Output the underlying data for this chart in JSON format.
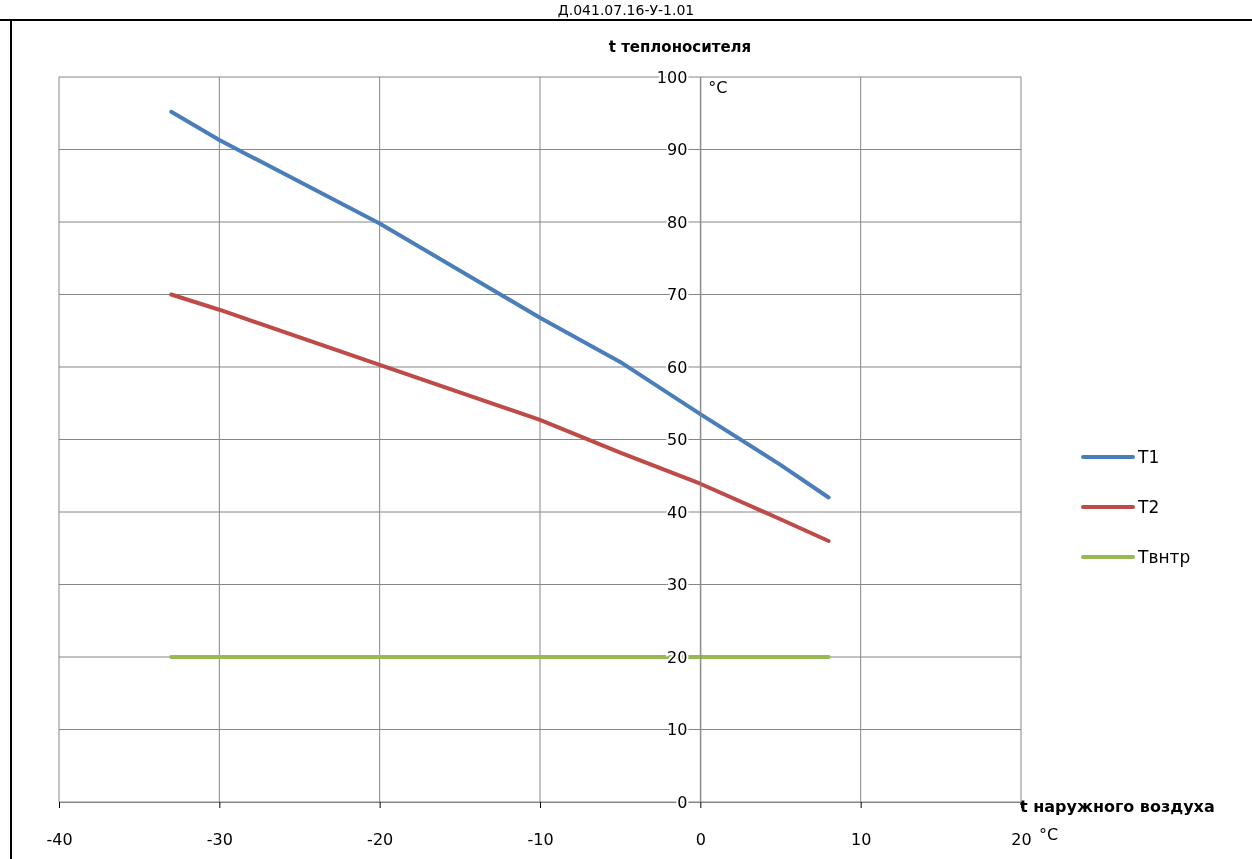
{
  "chart_data": {
    "type": "line",
    "title": "Д.041.07.16-У-1.01",
    "xlabel": "t наружного воздуха",
    "ylabel": "t теплоносителя",
    "annotations": [
      "°C",
      "°C"
    ],
    "series": [
      {
        "name": "T1",
        "color": "#4a7ebb",
        "x": [
          -33,
          -30,
          -20,
          -10,
          -5,
          0,
          5,
          8
        ],
        "values": [
          95.2,
          91.3,
          79.8,
          66.8,
          60.7,
          53.5,
          46.5,
          42
        ]
      },
      {
        "name": "T2",
        "color": "#be4b48",
        "x": [
          -33,
          -30,
          -20,
          -10,
          -5,
          0,
          5,
          8
        ],
        "values": [
          70,
          67.9,
          60.3,
          52.7,
          48.2,
          43.9,
          39,
          36
        ]
      },
      {
        "name": "Твнтр",
        "color": "#98b954",
        "x": [
          -33,
          8
        ],
        "values": [
          20,
          20
        ]
      }
    ],
    "xlim": [
      -40,
      20
    ],
    "xticks": [
      -40,
      -30,
      -20,
      -10,
      0,
      10,
      20
    ],
    "ylim": [
      0,
      100
    ],
    "yticks": [
      0,
      10,
      20,
      30,
      40,
      50,
      60,
      70,
      80,
      90,
      100
    ],
    "grid": true,
    "legend": "right",
    "marker": "none",
    "line_style": "solid"
  }
}
